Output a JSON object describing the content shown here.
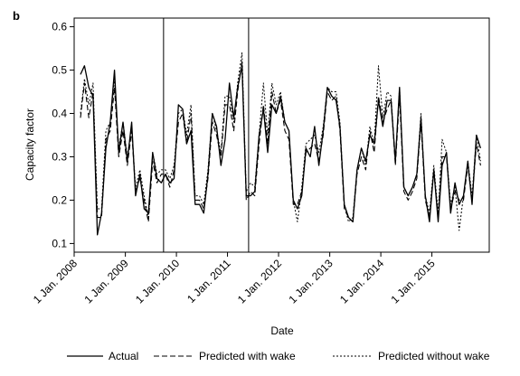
{
  "panel_label": "b",
  "chart_data": {
    "type": "line",
    "xlabel": "Date",
    "ylabel": "Capacity factor",
    "ylim": [
      0.08,
      0.62
    ],
    "xlim": [
      "2008-01-01",
      "2016-02-15"
    ],
    "yticks": [
      0.1,
      0.2,
      0.3,
      0.4,
      0.5,
      0.6
    ],
    "ytick_labels": [
      "0.1",
      "0.2",
      "0.3",
      "0.4",
      "0.5",
      "0.6"
    ],
    "xticks": [
      "2008-01-01",
      "2009-01-01",
      "2010-01-01",
      "2011-01-01",
      "2012-01-01",
      "2013-01-01",
      "2014-01-01",
      "2015-01-01"
    ],
    "xtick_labels": [
      "1 Jan. 2008",
      "1 Jan. 2009",
      "1 Jan. 2010",
      "1 Jan. 2011",
      "1 Jan. 2012",
      "1 Jan. 2013",
      "1 Jan. 2014",
      "1 Jan. 2015"
    ],
    "vlines": [
      "2009-10-01",
      "2011-06-01"
    ],
    "grid": false,
    "legend_position": "bottom",
    "x": [
      "2008-02",
      "2008-03",
      "2008-04",
      "2008-05",
      "2008-06",
      "2008-07",
      "2008-08",
      "2008-09",
      "2008-10",
      "2008-11",
      "2008-12",
      "2009-01",
      "2009-02",
      "2009-03",
      "2009-04",
      "2009-05",
      "2009-06",
      "2009-07",
      "2009-08",
      "2009-09",
      "2009-10",
      "2009-11",
      "2009-12",
      "2010-01",
      "2010-02",
      "2010-03",
      "2010-04",
      "2010-05",
      "2010-06",
      "2010-07",
      "2010-08",
      "2010-09",
      "2010-10",
      "2010-11",
      "2010-12",
      "2011-01",
      "2011-02",
      "2011-03",
      "2011-04",
      "2011-05",
      "2011-06",
      "2011-07",
      "2011-08",
      "2011-09",
      "2011-10",
      "2011-11",
      "2011-12",
      "2012-01",
      "2012-02",
      "2012-03",
      "2012-04",
      "2012-05",
      "2012-06",
      "2012-07",
      "2012-08",
      "2012-09",
      "2012-10",
      "2012-11",
      "2012-12",
      "2013-01",
      "2013-02",
      "2013-03",
      "2013-04",
      "2013-05",
      "2013-06",
      "2013-07",
      "2013-08",
      "2013-09",
      "2013-10",
      "2013-11",
      "2013-12",
      "2014-01",
      "2014-02",
      "2014-03",
      "2014-04",
      "2014-05",
      "2014-06",
      "2014-07",
      "2014-08",
      "2014-09",
      "2014-10",
      "2014-11",
      "2014-12",
      "2015-01",
      "2015-02",
      "2015-03",
      "2015-04",
      "2015-05",
      "2015-06",
      "2015-07",
      "2015-08",
      "2015-09",
      "2015-10",
      "2015-11",
      "2015-12"
    ],
    "series": [
      {
        "name": "Actual",
        "dash": "solid",
        "values": [
          0.49,
          0.51,
          0.46,
          0.44,
          0.12,
          0.17,
          0.32,
          0.38,
          0.5,
          0.31,
          0.38,
          0.29,
          0.38,
          0.21,
          0.26,
          0.18,
          0.17,
          0.31,
          0.25,
          0.24,
          0.26,
          0.24,
          0.25,
          0.42,
          0.41,
          0.33,
          0.36,
          0.19,
          0.19,
          0.17,
          0.26,
          0.4,
          0.37,
          0.28,
          0.34,
          0.47,
          0.39,
          0.46,
          0.51,
          0.21,
          0.21,
          0.22,
          0.35,
          0.41,
          0.31,
          0.42,
          0.4,
          0.44,
          0.38,
          0.36,
          0.2,
          0.18,
          0.21,
          0.32,
          0.3,
          0.37,
          0.28,
          0.36,
          0.46,
          0.44,
          0.43,
          0.37,
          0.19,
          0.16,
          0.15,
          0.27,
          0.32,
          0.29,
          0.35,
          0.33,
          0.43,
          0.37,
          0.43,
          0.43,
          0.29,
          0.46,
          0.23,
          0.21,
          0.23,
          0.26,
          0.39,
          0.21,
          0.15,
          0.27,
          0.15,
          0.28,
          0.31,
          0.17,
          0.24,
          0.19,
          0.21,
          0.29,
          0.19,
          0.35,
          0.32
        ]
      },
      {
        "name": "Predicted with wake",
        "dash": "dashed",
        "values": [
          0.39,
          0.47,
          0.39,
          0.45,
          0.16,
          0.16,
          0.34,
          0.36,
          0.46,
          0.3,
          0.36,
          0.28,
          0.36,
          0.22,
          0.25,
          0.2,
          0.15,
          0.29,
          0.24,
          0.26,
          0.26,
          0.23,
          0.27,
          0.38,
          0.4,
          0.33,
          0.4,
          0.2,
          0.2,
          0.18,
          0.25,
          0.38,
          0.35,
          0.3,
          0.42,
          0.42,
          0.36,
          0.45,
          0.52,
          0.2,
          0.22,
          0.21,
          0.33,
          0.42,
          0.33,
          0.45,
          0.4,
          0.43,
          0.36,
          0.34,
          0.19,
          0.19,
          0.22,
          0.31,
          0.32,
          0.33,
          0.29,
          0.35,
          0.45,
          0.43,
          0.44,
          0.36,
          0.18,
          0.16,
          0.15,
          0.26,
          0.3,
          0.27,
          0.36,
          0.31,
          0.44,
          0.38,
          0.41,
          0.43,
          0.28,
          0.44,
          0.22,
          0.2,
          0.22,
          0.25,
          0.38,
          0.2,
          0.16,
          0.27,
          0.16,
          0.3,
          0.3,
          0.18,
          0.22,
          0.2,
          0.2,
          0.28,
          0.2,
          0.33,
          0.28
        ]
      },
      {
        "name": "Predicted without wake",
        "dash": "dotted",
        "values": [
          0.4,
          0.48,
          0.42,
          0.47,
          0.18,
          0.18,
          0.36,
          0.38,
          0.48,
          0.32,
          0.38,
          0.3,
          0.37,
          0.23,
          0.27,
          0.21,
          0.16,
          0.31,
          0.26,
          0.27,
          0.27,
          0.25,
          0.28,
          0.4,
          0.41,
          0.35,
          0.42,
          0.21,
          0.21,
          0.19,
          0.27,
          0.4,
          0.36,
          0.31,
          0.44,
          0.44,
          0.38,
          0.47,
          0.54,
          0.22,
          0.24,
          0.23,
          0.35,
          0.47,
          0.35,
          0.47,
          0.42,
          0.45,
          0.38,
          0.36,
          0.2,
          0.15,
          0.23,
          0.33,
          0.34,
          0.35,
          0.31,
          0.37,
          0.46,
          0.45,
          0.45,
          0.38,
          0.19,
          0.15,
          0.16,
          0.27,
          0.32,
          0.28,
          0.37,
          0.33,
          0.51,
          0.39,
          0.45,
          0.44,
          0.29,
          0.46,
          0.23,
          0.21,
          0.23,
          0.26,
          0.4,
          0.21,
          0.17,
          0.28,
          0.17,
          0.34,
          0.31,
          0.19,
          0.23,
          0.13,
          0.21,
          0.29,
          0.21,
          0.35,
          0.29
        ]
      }
    ]
  }
}
